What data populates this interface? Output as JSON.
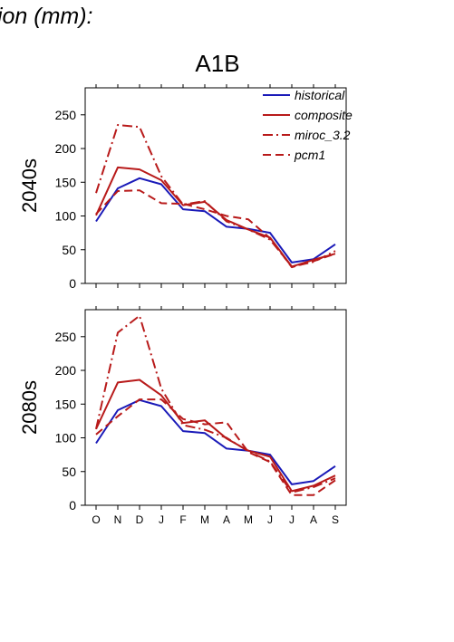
{
  "header": {
    "title": "tion (mm):"
  },
  "scenario": "A1B",
  "months": [
    "O",
    "N",
    "D",
    "J",
    "F",
    "M",
    "A",
    "M",
    "J",
    "J",
    "A",
    "S"
  ],
  "legend_items": [
    {
      "name": "historical",
      "color": "#1a1ab8",
      "dash": "solid"
    },
    {
      "name": "composite",
      "color": "#b81a1a",
      "dash": "solid"
    },
    {
      "name": "miroc_3.2",
      "color": "#b81a1a",
      "dash": "dashdot"
    },
    {
      "name": "pcm1",
      "color": "#b81a1a",
      "dash": "dash"
    }
  ],
  "chart_data": [
    {
      "type": "line",
      "ylabel": "2040s",
      "categories": [
        "O",
        "N",
        "D",
        "J",
        "F",
        "M",
        "A",
        "M",
        "J",
        "J",
        "A",
        "S"
      ],
      "ylim": [
        0,
        290
      ],
      "yticks": [
        0,
        50,
        100,
        150,
        200,
        250
      ],
      "series": [
        {
          "name": "historical",
          "values": [
            92,
            141,
            156,
            147,
            110,
            107,
            84,
            81,
            75,
            31,
            36,
            58
          ]
        },
        {
          "name": "composite",
          "values": [
            101,
            172,
            169,
            153,
            116,
            121,
            94,
            80,
            68,
            25,
            35,
            44
          ]
        },
        {
          "name": "miroc_3.2",
          "values": [
            134,
            235,
            232,
            159,
            117,
            122,
            92,
            80,
            65,
            25,
            32,
            48
          ]
        },
        {
          "name": "pcm1",
          "values": [
            103,
            137,
            138,
            119,
            118,
            110,
            100,
            95,
            67,
            24,
            33,
            44
          ]
        }
      ]
    },
    {
      "type": "line",
      "ylabel": "2080s",
      "categories": [
        "O",
        "N",
        "D",
        "J",
        "F",
        "M",
        "A",
        "M",
        "J",
        "J",
        "A",
        "S"
      ],
      "ylim": [
        0,
        290
      ],
      "yticks": [
        0,
        50,
        100,
        150,
        200,
        250
      ],
      "series": [
        {
          "name": "historical",
          "values": [
            92,
            141,
            156,
            147,
            110,
            107,
            84,
            81,
            75,
            31,
            36,
            58
          ]
        },
        {
          "name": "composite",
          "values": [
            113,
            182,
            186,
            163,
            122,
            126,
            99,
            81,
            72,
            21,
            29,
            44
          ]
        },
        {
          "name": "miroc_3.2",
          "values": [
            113,
            256,
            281,
            173,
            119,
            112,
            100,
            80,
            65,
            19,
            27,
            40
          ]
        },
        {
          "name": "pcm1",
          "values": [
            105,
            132,
            157,
            157,
            128,
            120,
            123,
            79,
            64,
            15,
            15,
            37
          ]
        }
      ]
    }
  ]
}
